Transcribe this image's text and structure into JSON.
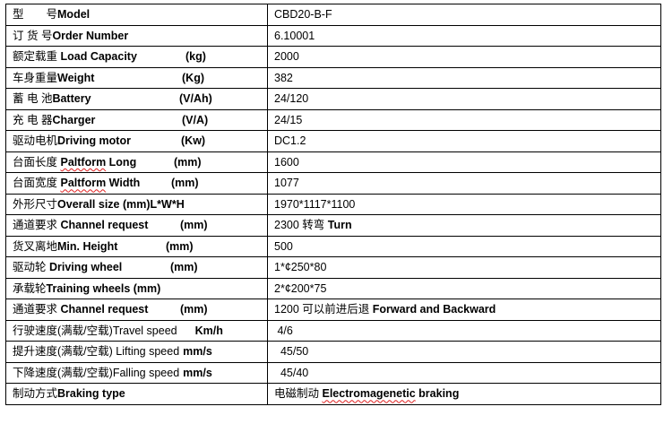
{
  "rows": [
    {
      "cn": "型　　号",
      "en": "Model",
      "en_bold": true,
      "unit": "",
      "value": [
        {
          "t": "CBD20-B-F"
        }
      ]
    },
    {
      "cn": "订 货 号",
      "en": "Order Number",
      "en_bold": true,
      "unit": "",
      "value": [
        {
          "t": "6.10001"
        }
      ]
    },
    {
      "cn": "额定载重 ",
      "en": "Load Capacity",
      "en_bold": true,
      "unit": "(kg)",
      "value": [
        {
          "t": "2000"
        }
      ]
    },
    {
      "cn": "车身重量",
      "en": "Weight",
      "en_bold": true,
      "unit": "(Kg)",
      "value": [
        {
          "t": "382"
        }
      ]
    },
    {
      "cn": "蓄 电 池",
      "en": "Battery",
      "en_bold": true,
      "unit": "(V/Ah)",
      "value": [
        {
          "t": "24/120"
        }
      ]
    },
    {
      "cn": "充 电 器",
      "en": "Charger",
      "en_bold": true,
      "unit": "(V/A)",
      "value": [
        {
          "t": "24/15"
        }
      ]
    },
    {
      "cn": "驱动电机",
      "en": "Driving motor",
      "en_bold": true,
      "unit": "(Kw)",
      "value": [
        {
          "t": "DC1.2"
        }
      ]
    },
    {
      "cn": "台面长度 ",
      "en": "Paltform Long",
      "en_bold": true,
      "spell": "Paltform",
      "unit": "(mm)",
      "value": [
        {
          "t": "1600"
        }
      ]
    },
    {
      "cn": "台面宽度 ",
      "en": "Paltform Width",
      "en_bold": true,
      "spell": "Paltform",
      "unit": "(mm)",
      "value": [
        {
          "t": "1077"
        }
      ]
    },
    {
      "cn": "外形尺寸",
      "en": "Overall size (mm)L*W*H",
      "en_bold": true,
      "unit": "",
      "value": [
        {
          "t": "1970*1117*1100"
        }
      ]
    },
    {
      "cn": "通道要求 ",
      "en": "Channel request",
      "en_bold": true,
      "unit": "(mm)",
      "value": [
        {
          "t": "2300 转弯 "
        },
        {
          "t": "Turn",
          "b": true
        }
      ]
    },
    {
      "cn": "货叉离地",
      "en": "Min. Height",
      "en_bold": true,
      "unit": "(mm)",
      "value": [
        {
          "t": "500"
        }
      ]
    },
    {
      "cn": "驱动轮 ",
      "en": "Driving wheel",
      "en_bold": true,
      "unit": "(mm)",
      "value": [
        {
          "t": "1*¢250*80"
        }
      ]
    },
    {
      "cn": "承载轮",
      "en": "Training wheels (mm)",
      "en_bold": true,
      "unit": "",
      "value": [
        {
          "t": "2*¢200*75"
        }
      ]
    },
    {
      "cn": "通道要求 ",
      "en": "Channel request",
      "en_bold": true,
      "unit": "(mm)",
      "value": [
        {
          "t": "1200 可以前进后退 "
        },
        {
          "t": "Forward and Backward",
          "b": true
        }
      ]
    },
    {
      "cn": "行驶速度(满载/空载)",
      "en": "Travel speed",
      "en_bold": false,
      "unit": "Km/h",
      "value": [
        {
          "t": " 4/6"
        }
      ]
    },
    {
      "cn": "提升速度(满载/空载) ",
      "en": "Lifting speed",
      "en_bold": false,
      "unit": "mm/s",
      "value": [
        {
          "t": "  45/50"
        }
      ]
    },
    {
      "cn": "下降速度(满载/空载)",
      "en": "Falling speed",
      "en_bold": false,
      "unit": "mm/s",
      "value": [
        {
          "t": "  45/40"
        }
      ]
    },
    {
      "cn": "制动方式",
      "en": "Braking type",
      "en_bold": true,
      "unit": "",
      "value": [
        {
          "t": "电磁制动 "
        },
        {
          "t": "Electromagenetic",
          "b": true,
          "spell": true
        },
        {
          "t": " braking",
          "b": true
        }
      ]
    }
  ]
}
